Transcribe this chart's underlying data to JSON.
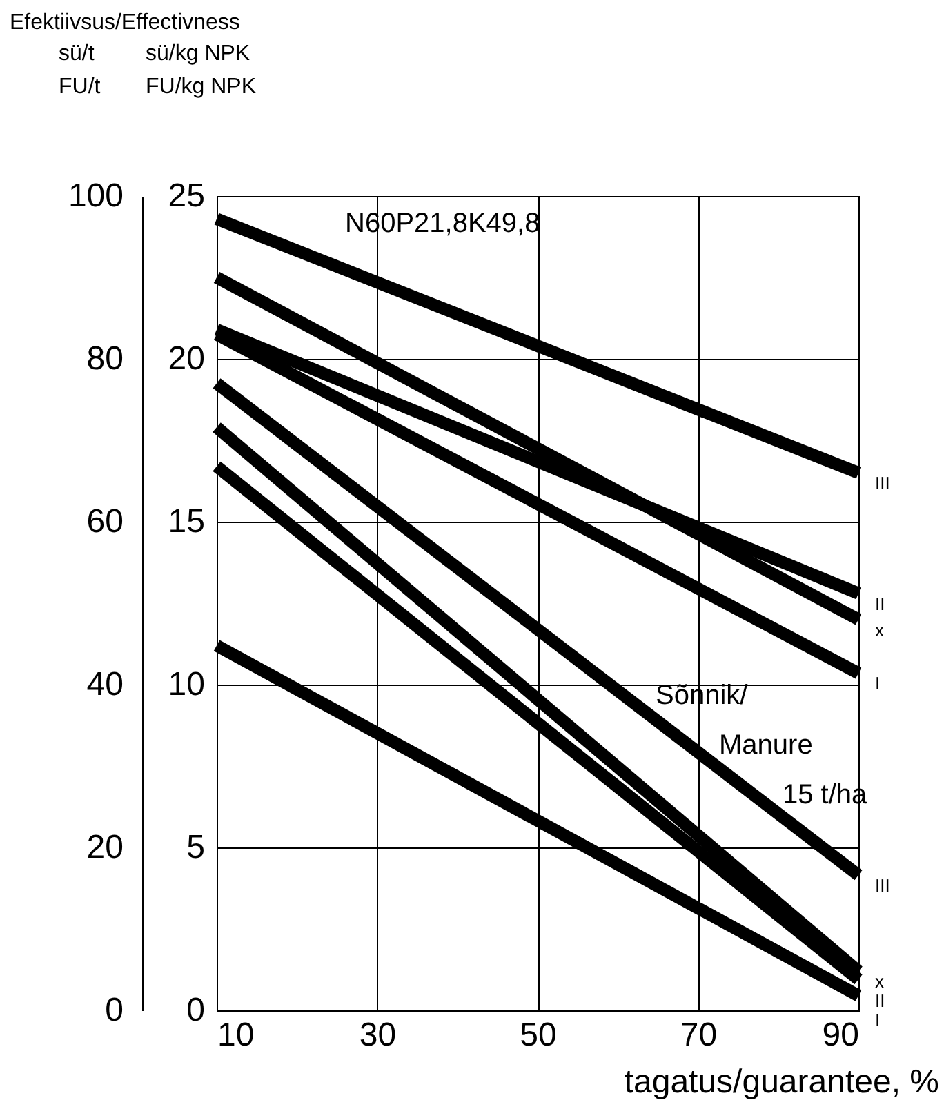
{
  "chart_data": {
    "type": "line",
    "title": "Efektiivsus/Effectivness",
    "ylabel": "sü/t\nFU/t",
    "y2label": "sü/kg NPK\nFU/kg NPK",
    "xlabel": "tagatus/guarantee, %",
    "x": [
      10,
      90
    ],
    "xlim": [
      10,
      90
    ],
    "xticks": [
      10,
      30,
      50,
      70,
      90
    ],
    "ylim": [
      0,
      100
    ],
    "yticks": [
      0,
      20,
      40,
      60,
      80,
      100
    ],
    "y2lim": [
      0,
      25
    ],
    "y2ticks": [
      0,
      5,
      10,
      15,
      20,
      25
    ],
    "grid": true,
    "series": [
      {
        "name": "III",
        "color": "#000000",
        "axis": "y2",
        "values": [
          24.3,
          16.5
        ]
      },
      {
        "name": "II",
        "color": "#000000",
        "axis": "y2",
        "values": [
          20.9,
          12.8
        ]
      },
      {
        "name": "x",
        "color": "#000000",
        "axis": "y2",
        "values": [
          22.5,
          12.0
        ]
      },
      {
        "name": "I",
        "color": "#000000",
        "axis": "y2",
        "values": [
          20.75,
          10.35
        ]
      },
      {
        "name": "III",
        "color": "#000000",
        "axis": "y2",
        "values": [
          19.25,
          4.15
        ]
      },
      {
        "name": "x",
        "color": "#000000",
        "axis": "y2",
        "values": [
          17.9,
          1.2
        ]
      },
      {
        "name": "II",
        "color": "#000000",
        "axis": "y2",
        "values": [
          16.7,
          0.95
        ]
      },
      {
        "name": "I",
        "color": "#000000",
        "axis": "y2",
        "values": [
          11.2,
          0.45
        ]
      }
    ],
    "annotations": [
      "N60P21,8K49,8",
      "Sõnnik/\nManure\n15 t/ha"
    ]
  }
}
